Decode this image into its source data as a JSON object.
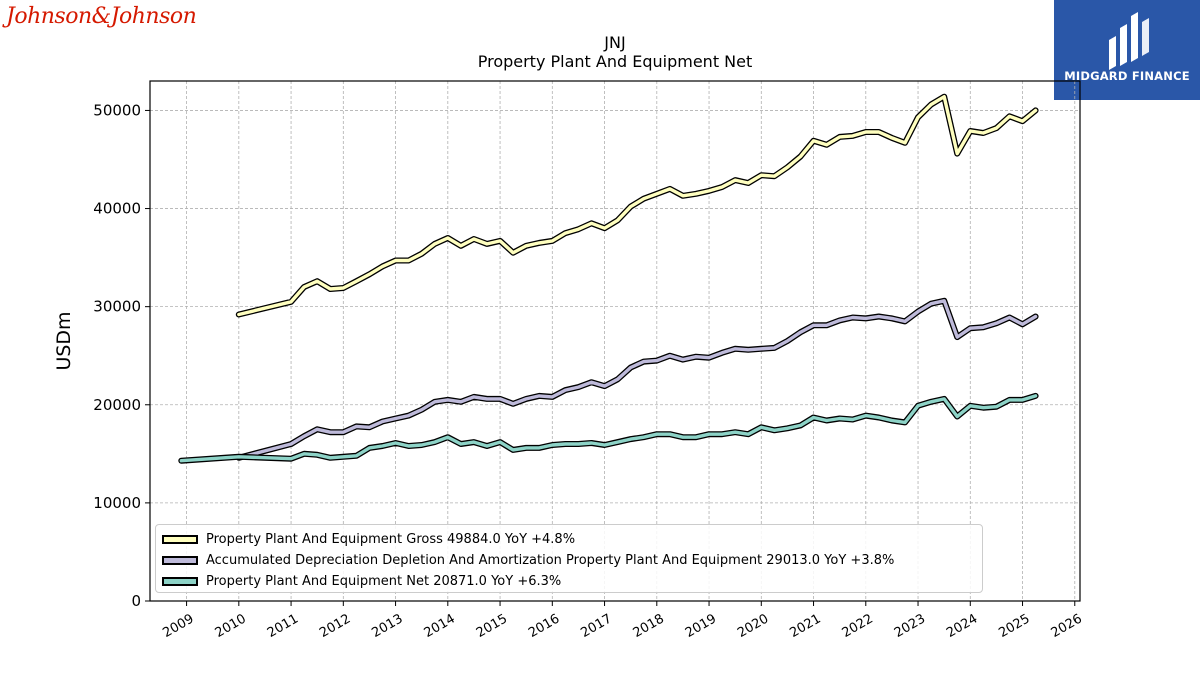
{
  "brand_left": {
    "text": "Johnson&Johnson"
  },
  "brand_right": {
    "text": "MIDGARD FINANCE",
    "bg": "#2a57a8"
  },
  "chart_data": {
    "type": "line",
    "title": "JNJ",
    "subtitle": "Property Plant And Equipment Net",
    "xlabel": "",
    "ylabel": "USDm",
    "ylim": [
      0,
      53000
    ],
    "xlim": [
      2008.3,
      2026.1
    ],
    "yticks": [
      0,
      10000,
      20000,
      30000,
      40000,
      50000
    ],
    "ytick_labels": [
      "0",
      "10000",
      "20000",
      "30000",
      "40000",
      "50000"
    ],
    "xticks": [
      2009,
      2010,
      2011,
      2012,
      2013,
      2014,
      2015,
      2016,
      2017,
      2018,
      2019,
      2020,
      2021,
      2022,
      2023,
      2024,
      2025,
      2026
    ],
    "xtick_labels": [
      "2009",
      "2010",
      "2011",
      "2012",
      "2013",
      "2014",
      "2015",
      "2016",
      "2017",
      "2018",
      "2019",
      "2020",
      "2021",
      "2022",
      "2023",
      "2024",
      "2025",
      "2026"
    ],
    "grid": true,
    "legend_position": "lower-left",
    "series": [
      {
        "name": "Property Plant And Equipment Gross",
        "legend_label": "Property Plant And Equipment Gross  49884.0 YoY +4.8%",
        "color": "#ffffbf",
        "points": [
          [
            2010.0,
            29200
          ],
          [
            2011.0,
            30500
          ],
          [
            2011.25,
            32000
          ],
          [
            2011.5,
            32600
          ],
          [
            2011.75,
            31800
          ],
          [
            2012.0,
            31900
          ],
          [
            2012.25,
            32600
          ],
          [
            2012.5,
            33300
          ],
          [
            2012.75,
            34100
          ],
          [
            2013.0,
            34700
          ],
          [
            2013.25,
            34700
          ],
          [
            2013.5,
            35400
          ],
          [
            2013.75,
            36400
          ],
          [
            2014.0,
            37000
          ],
          [
            2014.25,
            36200
          ],
          [
            2014.5,
            36900
          ],
          [
            2014.75,
            36400
          ],
          [
            2015.0,
            36700
          ],
          [
            2015.25,
            35500
          ],
          [
            2015.5,
            36200
          ],
          [
            2015.75,
            36500
          ],
          [
            2016.0,
            36700
          ],
          [
            2016.25,
            37500
          ],
          [
            2016.5,
            37900
          ],
          [
            2016.75,
            38500
          ],
          [
            2017.0,
            38000
          ],
          [
            2017.25,
            38800
          ],
          [
            2017.5,
            40200
          ],
          [
            2017.75,
            41000
          ],
          [
            2018.0,
            41500
          ],
          [
            2018.25,
            42000
          ],
          [
            2018.5,
            41300
          ],
          [
            2018.75,
            41500
          ],
          [
            2019.0,
            41800
          ],
          [
            2019.25,
            42200
          ],
          [
            2019.5,
            42900
          ],
          [
            2019.75,
            42600
          ],
          [
            2020.0,
            43400
          ],
          [
            2020.25,
            43300
          ],
          [
            2020.5,
            44200
          ],
          [
            2020.75,
            45300
          ],
          [
            2021.0,
            46900
          ],
          [
            2021.25,
            46500
          ],
          [
            2021.5,
            47300
          ],
          [
            2021.75,
            47400
          ],
          [
            2022.0,
            47800
          ],
          [
            2022.25,
            47800
          ],
          [
            2022.5,
            47200
          ],
          [
            2022.75,
            46700
          ],
          [
            2023.0,
            49300
          ],
          [
            2023.25,
            50600
          ],
          [
            2023.5,
            51400
          ],
          [
            2023.75,
            45600
          ],
          [
            2024.0,
            47900
          ],
          [
            2024.25,
            47700
          ],
          [
            2024.5,
            48200
          ],
          [
            2024.75,
            49400
          ],
          [
            2025.0,
            48900
          ],
          [
            2025.25,
            50000
          ]
        ]
      },
      {
        "name": "Accumulated Depreciation Depletion And Amortization Property Plant And Equipment",
        "legend_label": "Accumulated Depreciation Depletion And Amortization Property Plant And Equipment  29013.0 YoY +3.8%",
        "color": "#bebada",
        "points": [
          [
            2010.0,
            14600
          ],
          [
            2011.0,
            16000
          ],
          [
            2011.25,
            16800
          ],
          [
            2011.5,
            17500
          ],
          [
            2011.75,
            17200
          ],
          [
            2012.0,
            17200
          ],
          [
            2012.25,
            17800
          ],
          [
            2012.5,
            17700
          ],
          [
            2012.75,
            18300
          ],
          [
            2013.0,
            18600
          ],
          [
            2013.25,
            18900
          ],
          [
            2013.5,
            19500
          ],
          [
            2013.75,
            20300
          ],
          [
            2014.0,
            20500
          ],
          [
            2014.25,
            20300
          ],
          [
            2014.5,
            20800
          ],
          [
            2014.75,
            20600
          ],
          [
            2015.0,
            20600
          ],
          [
            2015.25,
            20100
          ],
          [
            2015.5,
            20600
          ],
          [
            2015.75,
            20900
          ],
          [
            2016.0,
            20800
          ],
          [
            2016.25,
            21500
          ],
          [
            2016.5,
            21800
          ],
          [
            2016.75,
            22300
          ],
          [
            2017.0,
            21900
          ],
          [
            2017.25,
            22600
          ],
          [
            2017.5,
            23800
          ],
          [
            2017.75,
            24400
          ],
          [
            2018.0,
            24500
          ],
          [
            2018.25,
            25000
          ],
          [
            2018.5,
            24600
          ],
          [
            2018.75,
            24900
          ],
          [
            2019.0,
            24800
          ],
          [
            2019.25,
            25300
          ],
          [
            2019.5,
            25700
          ],
          [
            2019.75,
            25600
          ],
          [
            2020.0,
            25700
          ],
          [
            2020.25,
            25800
          ],
          [
            2020.5,
            26500
          ],
          [
            2020.75,
            27400
          ],
          [
            2021.0,
            28100
          ],
          [
            2021.25,
            28100
          ],
          [
            2021.5,
            28600
          ],
          [
            2021.75,
            28900
          ],
          [
            2022.0,
            28800
          ],
          [
            2022.25,
            29000
          ],
          [
            2022.5,
            28800
          ],
          [
            2022.75,
            28500
          ],
          [
            2023.0,
            29500
          ],
          [
            2023.25,
            30300
          ],
          [
            2023.5,
            30600
          ],
          [
            2023.75,
            26900
          ],
          [
            2024.0,
            27800
          ],
          [
            2024.25,
            27900
          ],
          [
            2024.5,
            28300
          ],
          [
            2024.75,
            28900
          ],
          [
            2025.0,
            28200
          ],
          [
            2025.25,
            29000
          ]
        ]
      },
      {
        "name": "Property Plant And Equipment Net",
        "legend_label": "Property Plant And Equipment Net  20871.0 YoY +6.3%",
        "color": "#8dd3c7",
        "points": [
          [
            2008.9,
            14300
          ],
          [
            2010.0,
            14700
          ],
          [
            2011.0,
            14500
          ],
          [
            2011.25,
            15000
          ],
          [
            2011.5,
            14900
          ],
          [
            2011.75,
            14600
          ],
          [
            2012.0,
            14700
          ],
          [
            2012.25,
            14800
          ],
          [
            2012.5,
            15600
          ],
          [
            2012.75,
            15800
          ],
          [
            2013.0,
            16100
          ],
          [
            2013.25,
            15800
          ],
          [
            2013.5,
            15900
          ],
          [
            2013.75,
            16200
          ],
          [
            2014.0,
            16700
          ],
          [
            2014.25,
            16000
          ],
          [
            2014.5,
            16200
          ],
          [
            2014.75,
            15800
          ],
          [
            2015.0,
            16200
          ],
          [
            2015.25,
            15400
          ],
          [
            2015.5,
            15600
          ],
          [
            2015.75,
            15600
          ],
          [
            2016.0,
            15900
          ],
          [
            2016.25,
            16000
          ],
          [
            2016.5,
            16000
          ],
          [
            2016.75,
            16100
          ],
          [
            2017.0,
            15900
          ],
          [
            2017.25,
            16200
          ],
          [
            2017.5,
            16500
          ],
          [
            2017.75,
            16700
          ],
          [
            2018.0,
            17000
          ],
          [
            2018.25,
            17000
          ],
          [
            2018.5,
            16700
          ],
          [
            2018.75,
            16700
          ],
          [
            2019.0,
            17000
          ],
          [
            2019.25,
            17000
          ],
          [
            2019.5,
            17200
          ],
          [
            2019.75,
            17000
          ],
          [
            2020.0,
            17700
          ],
          [
            2020.25,
            17400
          ],
          [
            2020.5,
            17600
          ],
          [
            2020.75,
            17900
          ],
          [
            2021.0,
            18700
          ],
          [
            2021.25,
            18400
          ],
          [
            2021.5,
            18600
          ],
          [
            2021.75,
            18500
          ],
          [
            2022.0,
            18900
          ],
          [
            2022.25,
            18700
          ],
          [
            2022.5,
            18400
          ],
          [
            2022.75,
            18200
          ],
          [
            2023.0,
            19900
          ],
          [
            2023.25,
            20300
          ],
          [
            2023.5,
            20600
          ],
          [
            2023.75,
            18800
          ],
          [
            2024.0,
            19900
          ],
          [
            2024.25,
            19700
          ],
          [
            2024.5,
            19800
          ],
          [
            2024.75,
            20500
          ],
          [
            2025.0,
            20500
          ],
          [
            2025.25,
            20900
          ]
        ]
      }
    ]
  }
}
